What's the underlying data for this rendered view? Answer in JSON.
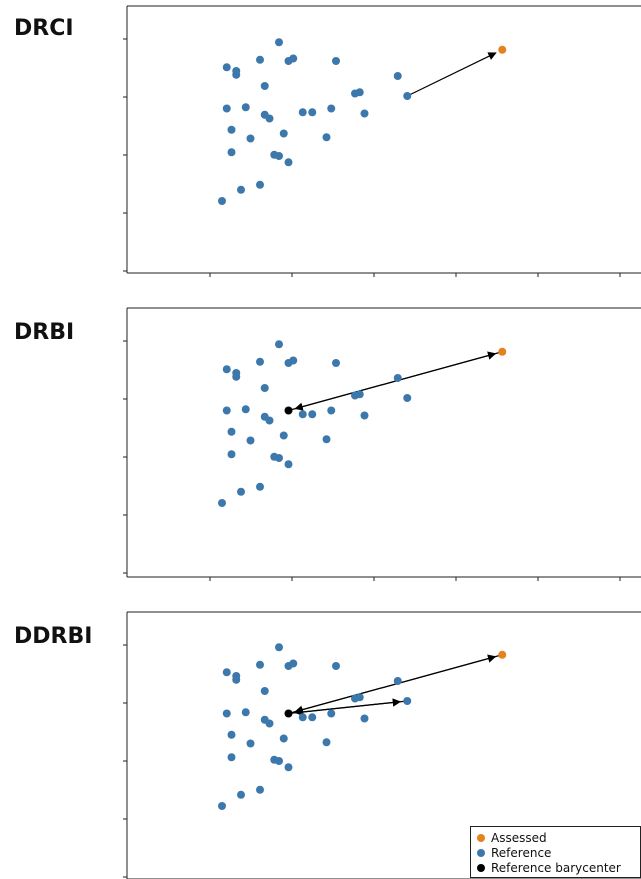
{
  "colors": {
    "assessed": "#E6821E",
    "reference": "#3D78AC",
    "barycenter": "#000000"
  },
  "legend": {
    "assessed": "Assessed",
    "reference": "Reference",
    "barycenter": "Reference barycenter"
  },
  "chart_data": [
    {
      "type": "scatter",
      "title": "DRCI",
      "series": [
        {
          "name": "Reference",
          "points": [
            [
              1.0,
              2.6
            ],
            [
              1.7,
              8.2
            ],
            [
              1.75,
              8.3
            ],
            [
              1.6,
              8.95
            ],
            [
              1.4,
              8.25
            ],
            [
              1.45,
              6.05
            ],
            [
              2.15,
              6.3
            ],
            [
              2.45,
              6.95
            ],
            [
              2.5,
              6.1
            ],
            [
              2.1,
              5.15
            ],
            [
              2.85,
              7.6
            ],
            [
              2.2,
              8.2
            ],
            [
              2.4,
              6.9
            ],
            [
              1.15,
              7.65
            ],
            [
              1.15,
              7.8
            ],
            [
              1.3,
              5.1
            ],
            [
              1.25,
              6.35
            ],
            [
              1.1,
              4.55
            ],
            [
              1.1,
              5.45
            ],
            [
              1.5,
              5.9
            ],
            [
              1.05,
              6.3
            ],
            [
              1.45,
              7.2
            ],
            [
              1.05,
              7.95
            ],
            [
              2.95,
              6.8
            ],
            [
              1.6,
              4.4
            ],
            [
              1.55,
              4.45
            ],
            [
              1.85,
              6.15
            ],
            [
              1.65,
              5.3
            ],
            [
              1.4,
              3.25
            ],
            [
              1.95,
              6.15
            ],
            [
              1.7,
              4.15
            ],
            [
              1.2,
              3.05
            ]
          ]
        },
        {
          "name": "Assessed",
          "points": [
            [
              3.95,
              8.65
            ]
          ]
        }
      ],
      "arrows": [
        [
          [
            2.95,
            6.8
          ],
          [
            3.95,
            8.65
          ]
        ]
      ]
    },
    {
      "type": "scatter",
      "title": "DRBI",
      "series": [
        {
          "name": "Reference",
          "points": [
            [
              1.0,
              2.6
            ],
            [
              1.7,
              8.2
            ],
            [
              1.75,
              8.3
            ],
            [
              1.6,
              8.95
            ],
            [
              1.4,
              8.25
            ],
            [
              1.45,
              6.05
            ],
            [
              2.15,
              6.3
            ],
            [
              2.45,
              6.95
            ],
            [
              2.5,
              6.1
            ],
            [
              2.1,
              5.15
            ],
            [
              2.85,
              7.6
            ],
            [
              2.2,
              8.2
            ],
            [
              2.4,
              6.9
            ],
            [
              1.15,
              7.65
            ],
            [
              1.15,
              7.8
            ],
            [
              1.3,
              5.1
            ],
            [
              1.25,
              6.35
            ],
            [
              1.1,
              4.55
            ],
            [
              1.1,
              5.45
            ],
            [
              1.5,
              5.9
            ],
            [
              1.05,
              6.3
            ],
            [
              1.45,
              7.2
            ],
            [
              1.05,
              7.95
            ],
            [
              2.95,
              6.8
            ],
            [
              1.6,
              4.4
            ],
            [
              1.55,
              4.45
            ],
            [
              1.85,
              6.15
            ],
            [
              1.65,
              5.3
            ],
            [
              1.4,
              3.25
            ],
            [
              1.95,
              6.15
            ],
            [
              1.7,
              4.15
            ],
            [
              1.2,
              3.05
            ]
          ]
        },
        {
          "name": "Assessed",
          "points": [
            [
              3.95,
              8.65
            ]
          ]
        },
        {
          "name": "Reference barycenter",
          "points": [
            [
              1.7,
              6.3
            ]
          ]
        }
      ],
      "arrows": [
        [
          [
            1.7,
            6.3
          ],
          [
            3.95,
            8.65
          ]
        ],
        [
          [
            3.95,
            8.65
          ],
          [
            1.7,
            6.3
          ]
        ]
      ]
    },
    {
      "type": "scatter",
      "title": "DDRBI",
      "series": [
        {
          "name": "Reference",
          "points": [
            [
              1.0,
              2.6
            ],
            [
              1.7,
              8.2
            ],
            [
              1.75,
              8.3
            ],
            [
              1.6,
              8.95
            ],
            [
              1.4,
              8.25
            ],
            [
              1.45,
              6.05
            ],
            [
              2.15,
              6.3
            ],
            [
              2.45,
              6.95
            ],
            [
              2.5,
              6.1
            ],
            [
              2.1,
              5.15
            ],
            [
              2.85,
              7.6
            ],
            [
              2.2,
              8.2
            ],
            [
              2.4,
              6.9
            ],
            [
              1.15,
              7.65
            ],
            [
              1.15,
              7.8
            ],
            [
              1.3,
              5.1
            ],
            [
              1.25,
              6.35
            ],
            [
              1.1,
              4.55
            ],
            [
              1.1,
              5.45
            ],
            [
              1.5,
              5.9
            ],
            [
              1.05,
              6.3
            ],
            [
              1.45,
              7.2
            ],
            [
              1.05,
              7.95
            ],
            [
              2.95,
              6.8
            ],
            [
              1.6,
              4.4
            ],
            [
              1.55,
              4.45
            ],
            [
              1.85,
              6.15
            ],
            [
              1.65,
              5.3
            ],
            [
              1.4,
              3.25
            ],
            [
              1.95,
              6.15
            ],
            [
              1.7,
              4.15
            ],
            [
              1.2,
              3.05
            ]
          ]
        },
        {
          "name": "Assessed",
          "points": [
            [
              3.95,
              8.65
            ]
          ]
        },
        {
          "name": "Reference barycenter",
          "points": [
            [
              1.7,
              6.3
            ]
          ]
        }
      ],
      "arrows": [
        [
          [
            1.7,
            6.3
          ],
          [
            3.95,
            8.65
          ]
        ],
        [
          [
            3.95,
            8.65
          ],
          [
            1.7,
            6.3
          ]
        ],
        [
          [
            1.7,
            6.3
          ],
          [
            2.95,
            6.8
          ]
        ],
        [
          [
            2.95,
            6.8
          ],
          [
            1.7,
            6.3
          ]
        ]
      ],
      "legend_position": "lower-right"
    }
  ]
}
